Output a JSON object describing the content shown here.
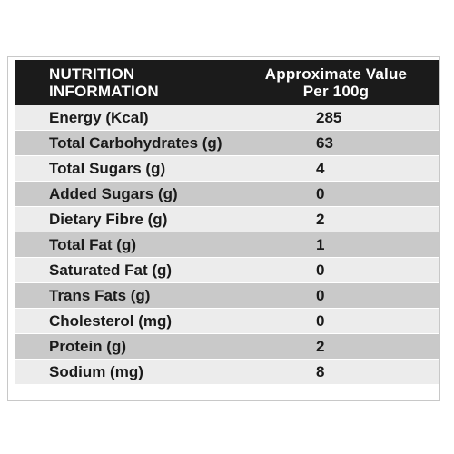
{
  "header": {
    "name_line1": "NUTRITION",
    "name_line2": "INFORMATION",
    "value_line1": "Approximate Value",
    "value_line2": "Per 100g"
  },
  "rows": [
    {
      "name": "Energy (Kcal)",
      "value": "285"
    },
    {
      "name": "Total Carbohydrates (g)",
      "value": "63"
    },
    {
      "name": "Total Sugars (g)",
      "value": "4"
    },
    {
      "name": "Added Sugars (g)",
      "value": "0"
    },
    {
      "name": "Dietary Fibre (g)",
      "value": "2"
    },
    {
      "name": "Total Fat (g)",
      "value": "1"
    },
    {
      "name": "Saturated Fat (g)",
      "value": "0"
    },
    {
      "name": "Trans Fats (g)",
      "value": "0"
    },
    {
      "name": "Cholesterol (mg)",
      "value": "0"
    },
    {
      "name": "Protein (g)",
      "value": "2"
    },
    {
      "name": "Sodium (mg)",
      "value": "8"
    }
  ],
  "colors": {
    "header_bg": "#1b1b1b",
    "row_light": "#ececec",
    "row_dark": "#c9c9c9"
  }
}
